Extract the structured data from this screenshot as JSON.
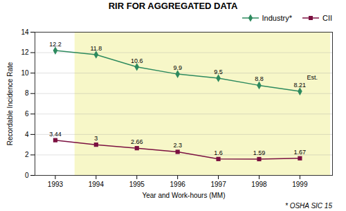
{
  "chart_data": {
    "type": "line",
    "title": "RIR FOR AGGREGATED DATA",
    "xlabel": "Year and Work-hours (MM)",
    "ylabel": "Recordable Incidence Rate",
    "x": [
      1993,
      1994,
      1995,
      1996,
      1997,
      1998,
      1999
    ],
    "series": [
      {
        "name": "Industry*",
        "color": "#2d8a5e",
        "marker": "diamond",
        "values": [
          12.2,
          11.8,
          10.6,
          9.9,
          9.5,
          8.8,
          8.21
        ]
      },
      {
        "name": "CII",
        "color": "#7b1040",
        "marker": "square",
        "values": [
          3.44,
          3,
          2.66,
          2.3,
          1.6,
          1.59,
          1.67
        ]
      }
    ],
    "xlim": [
      1992.5,
      1999.8
    ],
    "xticks": [
      1993,
      1994,
      1995,
      1996,
      1997,
      1998,
      1999
    ],
    "ylim": [
      0,
      14
    ],
    "yticks": [
      0,
      2,
      4,
      6,
      8,
      10,
      12,
      14
    ],
    "grid": true,
    "legend": "upper right",
    "data_labels": true,
    "highlight": {
      "xlim": [
        1993.48,
        1999.75
      ],
      "color": "#f7f7c8"
    },
    "annotations": [
      {
        "text": "Est.",
        "x": 1999,
        "y": 8.21
      },
      {
        "text": "* OSHA SIC 15"
      }
    ]
  }
}
